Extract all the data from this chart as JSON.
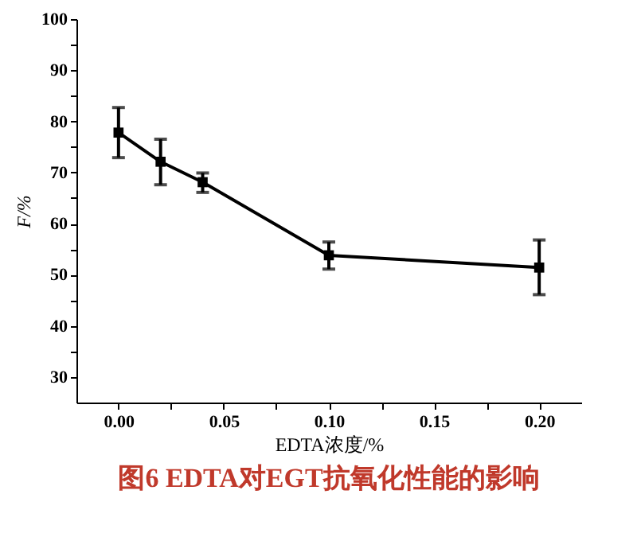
{
  "chart_data": {
    "type": "line",
    "title": "图6  EDTA对EGT抗氧化性能的影响",
    "xlabel": "EDTA浓度/%",
    "ylabel": "F/%",
    "x": [
      0,
      0.02,
      0.04,
      0.1,
      0.2
    ],
    "series": [
      {
        "color": "#000000",
        "values": [
          77.8,
          72.1,
          68.1,
          53.8,
          51.4
        ],
        "errors": [
          [
            72.9,
            82.7
          ],
          [
            67.6,
            76.5
          ],
          [
            66.1,
            69.9
          ],
          [
            51.1,
            56.4
          ],
          [
            46.1,
            56.8
          ]
        ]
      }
    ],
    "xlim": [
      -0.02,
      0.22
    ],
    "xticks": [
      {
        "value": 0,
        "label": "0.00"
      },
      {
        "value": 0.025,
        "label": null
      },
      {
        "value": 0.05,
        "label": "0.05"
      },
      {
        "value": 0.075,
        "label": null
      },
      {
        "value": 0.1,
        "label": "0.10"
      },
      {
        "value": 0.125,
        "label": null
      },
      {
        "value": 0.15,
        "label": "0.15"
      },
      {
        "value": 0.175,
        "label": null
      },
      {
        "value": 0.2,
        "label": "0.20"
      }
    ],
    "ylim": [
      25,
      100
    ],
    "yticks": [
      30,
      {
        "value": 35,
        "label": null
      },
      40,
      {
        "value": 45,
        "label": null
      },
      50,
      {
        "value": 55,
        "label": null
      },
      60,
      {
        "value": 65,
        "label": null
      },
      70,
      {
        "value": 75,
        "label": null
      },
      80,
      {
        "value": 85,
        "label": null
      },
      90,
      {
        "value": 95,
        "label": null
      },
      100
    ],
    "marker": "square",
    "line_style": "solid",
    "grid": false
  }
}
